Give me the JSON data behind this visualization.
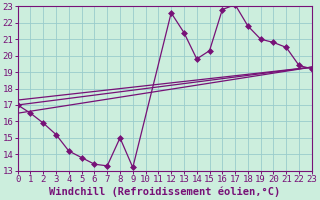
{
  "xlabel": "Windchill (Refroidissement éolien,°C)",
  "background_color": "#cceedd",
  "grid_color": "#99cccc",
  "line_color": "#771177",
  "xlim": [
    0,
    23
  ],
  "ylim": [
    13,
    23
  ],
  "xticks": [
    0,
    1,
    2,
    3,
    4,
    5,
    6,
    7,
    8,
    9,
    10,
    11,
    12,
    13,
    14,
    15,
    16,
    17,
    18,
    19,
    20,
    21,
    22,
    23
  ],
  "yticks": [
    13,
    14,
    15,
    16,
    17,
    18,
    19,
    20,
    21,
    22,
    23
  ],
  "main_x": [
    0,
    1,
    2,
    3,
    4,
    5,
    6,
    7,
    8,
    9,
    12,
    13,
    14,
    15,
    16,
    17,
    18,
    19,
    20,
    21,
    22,
    23
  ],
  "main_y": [
    17.0,
    16.5,
    15.9,
    15.2,
    14.2,
    13.8,
    13.4,
    13.3,
    15.0,
    13.2,
    22.6,
    21.4,
    19.8,
    20.3,
    22.8,
    23.1,
    21.8,
    21.0,
    20.8,
    20.5,
    19.4,
    19.2
  ],
  "trend1_x": [
    0,
    23
  ],
  "trend1_y": [
    17.0,
    19.3
  ],
  "trend2_x": [
    0,
    23
  ],
  "trend2_y": [
    16.5,
    19.3
  ],
  "trend3_x": [
    0,
    23
  ],
  "trend3_y": [
    17.3,
    19.3
  ],
  "marker_size": 3,
  "tick_fontsize": 6.5,
  "xlabel_fontsize": 7.5
}
